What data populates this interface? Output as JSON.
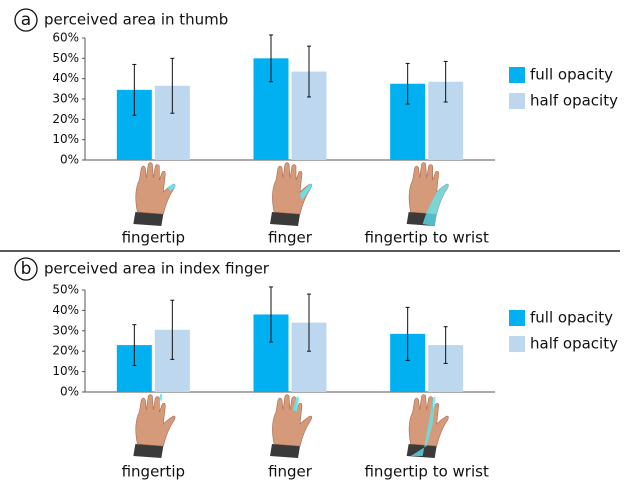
{
  "chart_data": [
    {
      "type": "bar",
      "panel_label": "a",
      "title": "perceived area in thumb",
      "categories": [
        "fingertip",
        "finger",
        "fingertip to wrist"
      ],
      "series": [
        {
          "name": "full opacity",
          "color": "#00b0f0",
          "values": [
            34.5,
            50,
            37.5
          ],
          "errors": [
            12.5,
            11.5,
            10
          ]
        },
        {
          "name": "half opacity",
          "color": "#bdd7ee",
          "values": [
            36.5,
            43.5,
            38.5
          ],
          "errors": [
            13.5,
            12.5,
            10
          ]
        }
      ],
      "ylim": [
        0,
        60
      ],
      "yticks": [
        {
          "value": 0,
          "label": "0%"
        },
        {
          "value": 10,
          "label": "10%"
        },
        {
          "value": 20,
          "label": "20%"
        },
        {
          "value": 30,
          "label": "30%"
        },
        {
          "value": 40,
          "label": "40%"
        },
        {
          "value": 50,
          "label": "50%"
        },
        {
          "value": 60,
          "label": "60%"
        }
      ],
      "grid": false,
      "legend": "right"
    },
    {
      "type": "bar",
      "panel_label": "b",
      "title": "perceived area in index finger",
      "categories": [
        "fingertip",
        "finger",
        "fingertip to wrist"
      ],
      "series": [
        {
          "name": "full opacity",
          "color": "#00b0f0",
          "values": [
            23,
            38,
            28.5
          ],
          "errors": [
            10,
            13.5,
            13
          ]
        },
        {
          "name": "half opacity",
          "color": "#bdd7ee",
          "values": [
            30.5,
            34,
            23
          ],
          "errors": [
            14.5,
            14,
            9
          ]
        }
      ],
      "ylim": [
        0,
        50
      ],
      "yticks": [
        {
          "value": 0,
          "label": "0%"
        },
        {
          "value": 10,
          "label": "10%"
        },
        {
          "value": 20,
          "label": "20%"
        },
        {
          "value": 30,
          "label": "30%"
        },
        {
          "value": 40,
          "label": "40%"
        },
        {
          "value": 50,
          "label": "50%"
        }
      ],
      "grid": false,
      "legend": "right"
    }
  ]
}
